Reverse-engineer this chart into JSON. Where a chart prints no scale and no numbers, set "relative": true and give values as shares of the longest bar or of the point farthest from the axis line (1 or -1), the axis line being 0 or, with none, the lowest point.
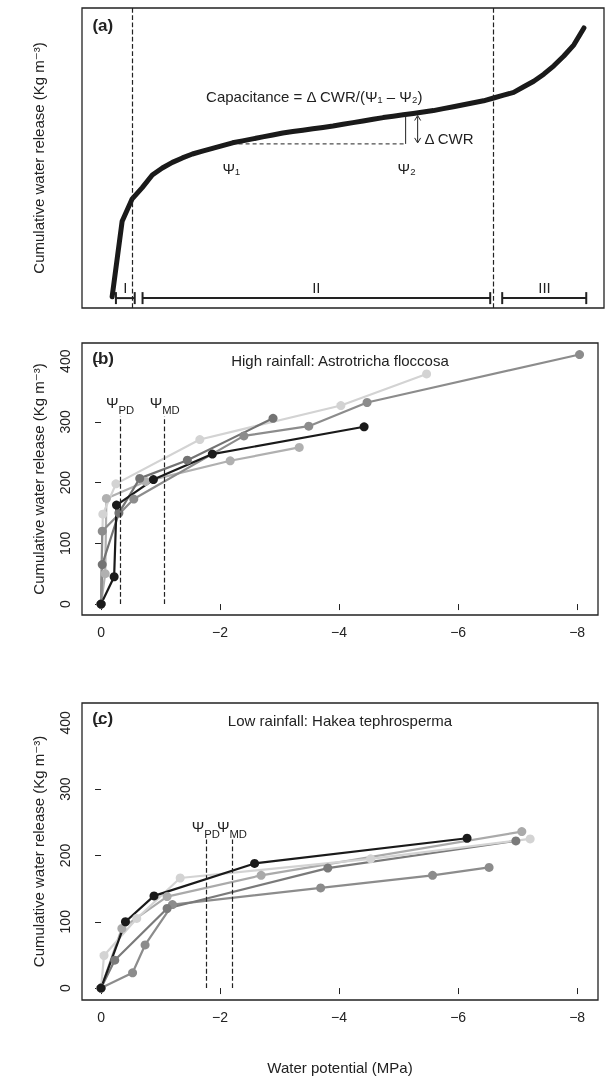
{
  "chart_data": [
    {
      "type": "line",
      "relative": true,
      "ylabel": "Cumulative water release (Kg m⁻³)",
      "marker": "none",
      "line_style": "solid",
      "categories": [
        null,
        null,
        null,
        null,
        null,
        null,
        null,
        null,
        null,
        null,
        null,
        null,
        null,
        null,
        null,
        null,
        null,
        null,
        null,
        null,
        null,
        null,
        null,
        null,
        null,
        null,
        null,
        null,
        null,
        null,
        null,
        null,
        null,
        null,
        null,
        null,
        null,
        null,
        null,
        null,
        null,
        null,
        null,
        null,
        null,
        null,
        null,
        null,
        null,
        null,
        null,
        null,
        null
      ],
      "series": [
        {
          "color": "#1a1a1a",
          "values": [
            null,
            null,
            null,
            0.04,
            0.31,
            0.39,
            0.43,
            0.475,
            0.5,
            0.52,
            0.536,
            0.55,
            0.56,
            0.57,
            0.58,
            0.59,
            0.597,
            0.604,
            0.611,
            0.618,
            0.625,
            0.63,
            0.635,
            0.64,
            0.645,
            0.65,
            0.656,
            0.662,
            0.668,
            0.674,
            0.68,
            0.685,
            0.69,
            0.695,
            0.7,
            0.705,
            0.712,
            0.719,
            0.726,
            0.733,
            0.74,
            0.75,
            0.76,
            0.77,
            0.79,
            0.81,
            0.835,
            0.865,
            0.9,
            0.94,
            1.0,
            null,
            null
          ]
        }
      ],
      "annotations": [
        "(a)",
        "Capacitance = Δ CWR/(Ψ₁ – Ψ₂)",
        "Δ CWR",
        "Ψ₁",
        "Ψ₂",
        "I",
        "II",
        "III"
      ]
    },
    {
      "type": "line",
      "title": "High rainfall: Astrotricha floccosa",
      "ylabel": "Cumulative water release (Kg m⁻³)",
      "marker": "circle",
      "line_style": "solid",
      "xlim": [
        0.32,
        -8.35
      ],
      "xticks": [
        0,
        {
          "value": -2,
          "label": "−2"
        },
        {
          "value": -4,
          "label": "−4"
        },
        {
          "value": -6,
          "label": "−6"
        },
        {
          "value": -8,
          "label": "−8"
        }
      ],
      "ylim": [
        -18,
        430
      ],
      "yticks": [
        0,
        100,
        200,
        300,
        400
      ],
      "series": [
        {
          "color": "#b0b0b0",
          "x": [
            0,
            -0.07,
            -0.09,
            -0.75,
            -2.17,
            -3.33
          ],
          "values": [
            0,
            50,
            174,
            202,
            236,
            258
          ]
        },
        {
          "color": "#d3d3d3",
          "x": [
            0,
            -0.03,
            -0.25,
            -1.66,
            -4.03,
            -5.47
          ],
          "values": [
            0,
            148,
            198,
            271,
            327,
            379
          ]
        },
        {
          "color": "#737373",
          "x": [
            0,
            -0.02,
            -0.3,
            -0.65,
            -1.45,
            -2.89
          ],
          "values": [
            0,
            65,
            150,
            207,
            237,
            306
          ]
        },
        {
          "color": "#8c8c8c",
          "x": [
            0,
            -0.02,
            -0.55,
            -2.4,
            -3.49,
            -4.47,
            -8.04
          ],
          "values": [
            0,
            120,
            173,
            277,
            293,
            332,
            411
          ]
        },
        {
          "color": "#1a1a1a",
          "x": [
            0,
            -0.22,
            -0.26,
            -0.88,
            -1.87,
            -4.42
          ],
          "values": [
            0,
            45,
            163,
            205,
            247,
            292
          ]
        }
      ],
      "ref_lines": [
        {
          "axis": "x",
          "value": -0.32,
          "label": "Ψ$_{PD}$",
          "line_style": "dashed"
        },
        {
          "axis": "x",
          "value": -1.07,
          "label": "Ψ$_{MD}$",
          "line_style": "dashed"
        }
      ],
      "annotations": [
        "(b)"
      ]
    },
    {
      "type": "line",
      "title": "Low rainfall: Hakea tephrosperma",
      "ylabel": "Cumulative water release (Kg m⁻³)",
      "xlabel": "Water potential (MPa)",
      "marker": "circle",
      "line_style": "solid",
      "xlim": [
        0.32,
        -8.35
      ],
      "xticks": [
        0,
        {
          "value": -2,
          "label": "−2"
        },
        {
          "value": -4,
          "label": "−4"
        },
        {
          "value": -6,
          "label": "−6"
        },
        {
          "value": -8,
          "label": "−8"
        }
      ],
      "ylim": [
        -18,
        430
      ],
      "yticks": [
        0,
        100,
        200,
        300,
        400
      ],
      "series": [
        {
          "color": "#8c8c8c",
          "x": [
            0,
            -0.53,
            -0.74,
            -1.2,
            -3.69,
            -5.57,
            -6.52
          ],
          "values": [
            0,
            23,
            65,
            126,
            151,
            170,
            182
          ]
        },
        {
          "color": "#7a7a7a",
          "x": [
            0,
            -0.23,
            -1.11,
            -3.81,
            -6.97
          ],
          "values": [
            0,
            42,
            120,
            181,
            222
          ]
        },
        {
          "color": "#aaaaaa",
          "x": [
            0,
            -0.35,
            -1.11,
            -2.69,
            -7.07
          ],
          "values": [
            0,
            90,
            138,
            170,
            236
          ]
        },
        {
          "color": "#d3d3d3",
          "x": [
            0,
            -0.05,
            -0.6,
            -1.33,
            -4.53,
            -7.21
          ],
          "values": [
            0,
            49,
            105,
            166,
            195,
            225
          ]
        },
        {
          "color": "#1a1a1a",
          "x": [
            0,
            -0.41,
            -0.89,
            -2.58,
            -6.15
          ],
          "values": [
            0,
            100,
            139,
            188,
            226
          ]
        }
      ],
      "ref_lines": [
        {
          "axis": "x",
          "value": -1.76,
          "label": "Ψ$_{PD}$",
          "line_style": "dashed"
        },
        {
          "axis": "x",
          "value": -2.2,
          "label": "Ψ$_{MD}$",
          "line_style": "dashed"
        }
      ],
      "annotations": [
        "(c)"
      ]
    }
  ]
}
